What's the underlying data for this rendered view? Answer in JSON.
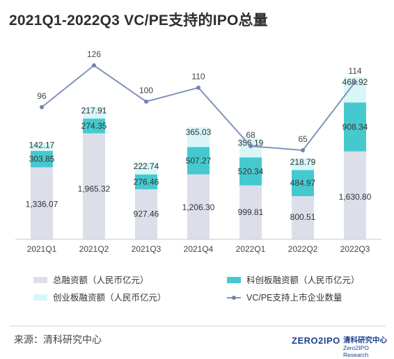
{
  "title": "2021Q1-2022Q3 VC/PE支持的IPO总量",
  "source": "来源：清科研究中心",
  "logo": {
    "mark": "ZERO2IPO",
    "cn": "清科研究中心",
    "en": "Zero2IPO Research"
  },
  "chart_data": {
    "type": "bar",
    "stacked": true,
    "categories": [
      "2021Q1",
      "2021Q2",
      "2021Q3",
      "2021Q4",
      "2022Q1",
      "2022Q2",
      "2022Q3"
    ],
    "series": [
      {
        "name": "总融资额（人民币亿元）",
        "type": "bar",
        "color": "#dcdfea",
        "values": [
          1336.07,
          1965.32,
          927.46,
          1206.3,
          999.81,
          800.51,
          1630.8
        ],
        "labels": [
          "1,336.07",
          "1,965.32",
          "927.46",
          "1,206.30",
          "999.81",
          "800.51",
          "1,630.80"
        ]
      },
      {
        "name": "科创板融资额（人民币亿元）",
        "type": "bar",
        "color": "#45c9cf",
        "values": [
          303.85,
          274.35,
          276.46,
          507.27,
          520.34,
          484.97,
          908.34
        ],
        "labels": [
          "303.85",
          "274.35",
          "276.46",
          "507.27",
          "520.34",
          "484.97",
          "908.34"
        ]
      },
      {
        "name": "创业板融资额（人民币亿元）",
        "type": "bar",
        "color": "#d8f6f8",
        "values": [
          142.17,
          217.91,
          222.74,
          365.03,
          356.19,
          218.79,
          468.92
        ],
        "labels": [
          "142.17",
          "217.91",
          "222.74",
          "365.03",
          "356.19",
          "218.79",
          "468.92"
        ]
      },
      {
        "name": "VC/PE支持上市企业数量",
        "type": "line",
        "color": "#7f93b9",
        "values": [
          96,
          126,
          100,
          110,
          68,
          65,
          114
        ],
        "labels": [
          "96",
          "126",
          "100",
          "110",
          "68",
          "65",
          "114"
        ]
      }
    ],
    "legend_position": "bottom",
    "grid": false
  }
}
